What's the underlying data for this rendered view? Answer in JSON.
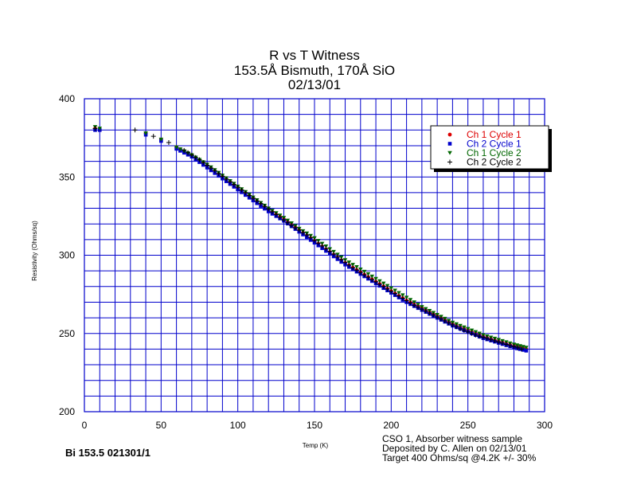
{
  "chart_data": {
    "type": "scatter",
    "title_lines": [
      "R vs T Witness",
      "153.5Å Bismuth, 170Å SiO",
      "02/13/01"
    ],
    "xlabel": "Temp (K)",
    "ylabel": "Resistivity (Ohms/sq)",
    "xlim": [
      0,
      300
    ],
    "ylim": [
      200,
      400
    ],
    "x_ticks": [
      0,
      50,
      100,
      150,
      200,
      250,
      300
    ],
    "y_ticks": [
      200,
      250,
      300,
      350,
      400
    ],
    "x_tick_labels": [
      "0",
      "50",
      "100",
      "150",
      "200",
      "250",
      "300"
    ],
    "y_tick_labels": [
      "200",
      "250",
      "300",
      "350",
      "400"
    ],
    "grid": true,
    "legend_position": "top-right",
    "series": [
      {
        "name": "Ch 1 Cycle 1",
        "color": "#dd0000",
        "marker": "circle",
        "x": [
          7,
          10,
          40,
          50,
          60,
          70,
          80,
          90,
          100,
          110,
          120,
          130,
          140,
          150,
          160,
          170,
          180,
          190,
          200,
          210,
          220,
          230,
          240,
          250,
          260,
          270,
          280,
          288
        ],
        "y": [
          381,
          380,
          378,
          374,
          369,
          364,
          357,
          350,
          343,
          336,
          329,
          323,
          316,
          309,
          302,
          295,
          289,
          283,
          277,
          271,
          266,
          261,
          256,
          252,
          248,
          245,
          242,
          240
        ]
      },
      {
        "name": "Ch 2 Cycle 1",
        "color": "#0000cc",
        "marker": "square",
        "x": [
          7,
          10,
          40,
          50,
          60,
          70,
          80,
          90,
          100,
          110,
          120,
          130,
          140,
          150,
          160,
          170,
          180,
          190,
          200,
          210,
          220,
          230,
          240,
          250,
          260,
          270,
          280,
          288
        ],
        "y": [
          380,
          380,
          377,
          373,
          368,
          363,
          356,
          349,
          342,
          335,
          328,
          322,
          315,
          308,
          301,
          294,
          288,
          282,
          276,
          270,
          265,
          260,
          255,
          251,
          247,
          244,
          241,
          239
        ]
      },
      {
        "name": "Ch 1 Cycle 2",
        "color": "#006600",
        "marker": "triangle",
        "x": [
          7,
          10,
          40,
          50,
          60,
          70,
          80,
          90,
          100,
          110,
          120,
          130,
          140,
          150,
          160,
          170,
          180,
          190,
          200,
          210,
          220,
          230,
          240,
          250,
          260,
          270,
          280,
          288
        ],
        "y": [
          382,
          381,
          378,
          374,
          369,
          364,
          358,
          351,
          344,
          337,
          330,
          324,
          317,
          311,
          304,
          297,
          291,
          285,
          279,
          273,
          267,
          262,
          257,
          253,
          249,
          246,
          243,
          241
        ]
      },
      {
        "name": "Ch 2 Cycle 2",
        "color": "#000000",
        "marker": "plus",
        "x": [
          7,
          33,
          45,
          55,
          65,
          75,
          85,
          95,
          105,
          115,
          125,
          135,
          145,
          155,
          165,
          175,
          185,
          195,
          205,
          215,
          225,
          235,
          245,
          255,
          265,
          275,
          285
        ],
        "y": [
          381,
          380,
          376,
          372,
          367,
          361,
          354,
          347,
          340,
          333,
          326,
          319,
          313,
          306,
          299,
          292,
          286,
          280,
          274,
          268,
          263,
          258,
          253,
          249,
          246,
          243,
          240
        ]
      }
    ]
  },
  "notes": {
    "line1": "CSO 1, Absorber witness sample",
    "line2": "Deposited by C. Allen on 02/13/01",
    "line3": "Target 400 Ohms/sq @4.2K +/- 30%"
  },
  "footer_id": "Bi 153.5 021301/1"
}
